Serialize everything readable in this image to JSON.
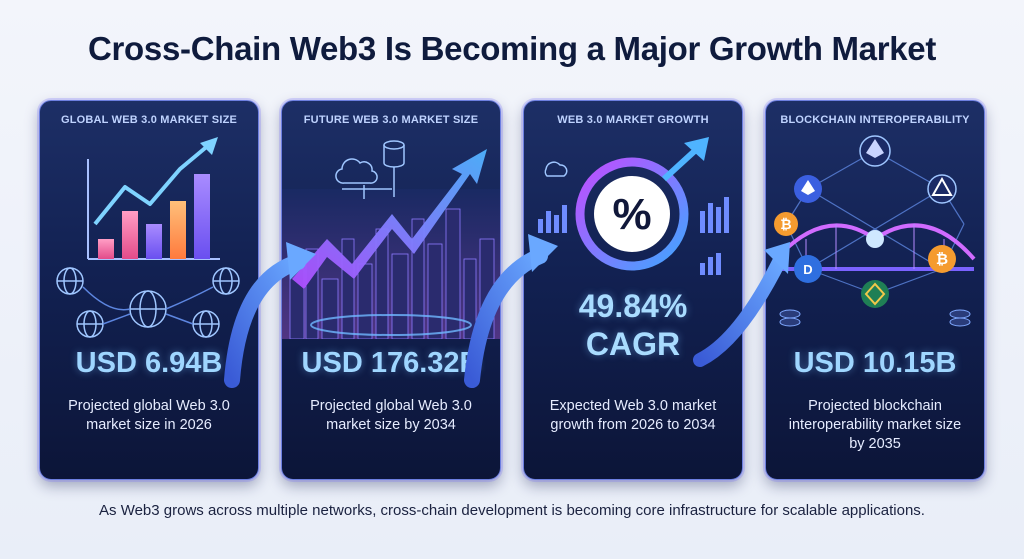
{
  "title": "Cross-Chain Web3 Is Becoming a Major Growth Market",
  "cards": [
    {
      "label": "GLOBAL WEB 3.0 MARKET SIZE",
      "value": "USD 6.94B",
      "description": "Projected global Web 3.0 market size in 2026",
      "icon": "bar-chart-growth-icon"
    },
    {
      "label": "FUTURE WEB 3.0 MARKET SIZE",
      "value": "USD 176.32B",
      "description": "Projected global Web 3.0 market size by 2034",
      "icon": "city-growth-icon"
    },
    {
      "label": "WEB 3.0 MARKET GROWTH",
      "value_line1": "49.84%",
      "value_line2": "CAGR",
      "description": "Expected Web 3.0 market growth from 2026 to 2034",
      "icon": "percent-ring-icon"
    },
    {
      "label": "BLOCKCHAIN INTEROPERABILITY",
      "value": "USD 10.15B",
      "description": "Projected blockchain interoperability market size by 2035",
      "icon": "bridge-network-icon"
    }
  ],
  "footer": "As Web3 grows across multiple networks, cross-chain development is becoming core infrastructure for scalable applications.",
  "colors": {
    "title": "#0f1b3d",
    "card_bg": "#122152",
    "value": "#9fd6ff",
    "arrow": "#4f7cf0"
  }
}
